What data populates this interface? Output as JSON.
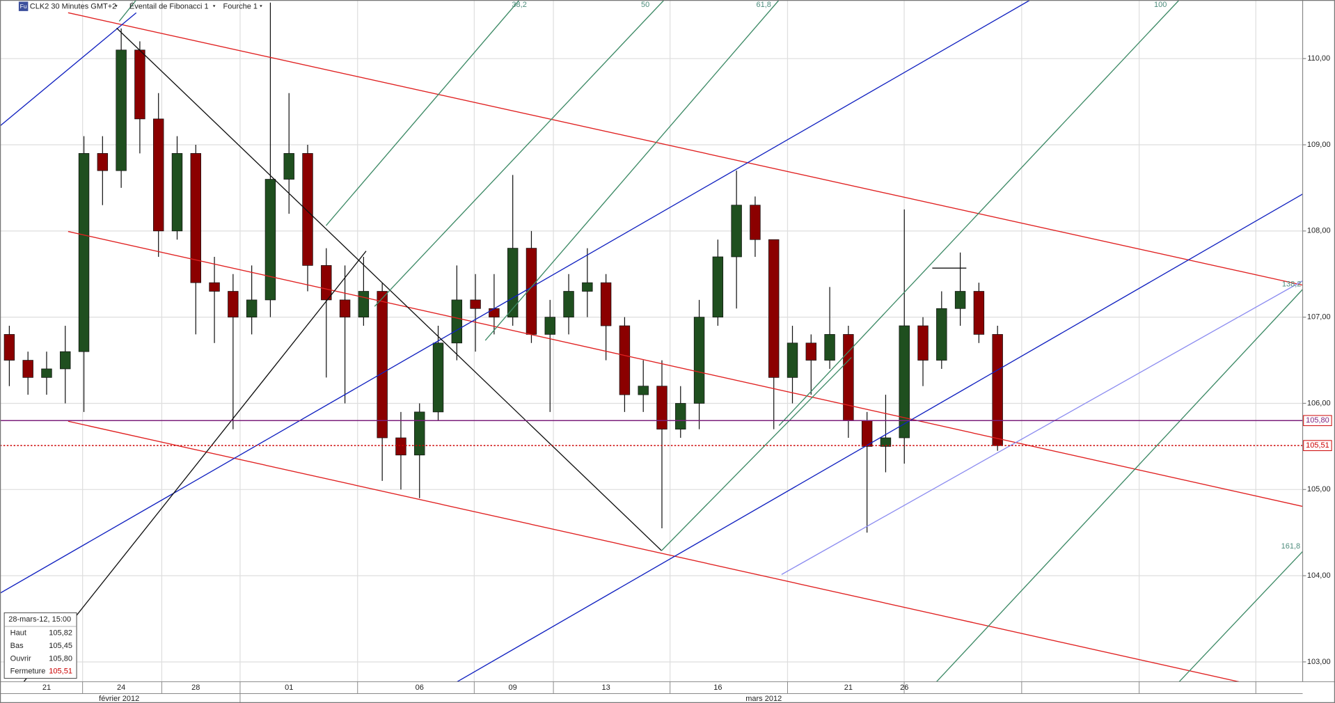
{
  "toolbar": {
    "icon": "Fu",
    "instrument": "CLK2 30 Minutes GMT+2",
    "tools": [
      "Éventail de Fibonacci 1",
      "Fourche 1"
    ]
  },
  "chart_data": {
    "type": "candlestick",
    "categories": [
      null,
      null,
      "21",
      null,
      null,
      null,
      "24",
      null,
      null,
      null,
      "28",
      null,
      null,
      null,
      null,
      "01",
      null,
      null,
      null,
      null,
      null,
      null,
      "06",
      null,
      null,
      null,
      null,
      "09",
      null,
      null,
      null,
      null,
      "13",
      null,
      null,
      null,
      null,
      null,
      "16",
      null,
      null,
      null,
      null,
      null,
      null,
      "21",
      null,
      null,
      "26",
      null,
      null,
      null,
      null,
      null
    ],
    "open": [
      106.8,
      106.5,
      106.3,
      106.4,
      106.6,
      108.9,
      108.7,
      110.1,
      109.3,
      108.0,
      108.9,
      107.4,
      107.3,
      107.0,
      107.2,
      108.6,
      108.9,
      107.6,
      107.2,
      107.0,
      107.3,
      105.6,
      105.4,
      105.9,
      106.7,
      107.2,
      107.1,
      107.0,
      107.8,
      106.8,
      107.0,
      107.3,
      107.4,
      106.9,
      106.1,
      106.2,
      105.7,
      106.0,
      107.0,
      107.7,
      108.3,
      107.9,
      106.3,
      106.7,
      106.5,
      106.8,
      105.8,
      105.5,
      105.6,
      106.9,
      106.5,
      107.1,
      107.3,
      106.8
    ],
    "high": [
      106.9,
      106.6,
      106.6,
      106.9,
      109.1,
      109.1,
      110.35,
      110.2,
      109.6,
      109.1,
      109.0,
      107.7,
      107.5,
      107.6,
      110.65,
      109.6,
      109.0,
      107.8,
      107.6,
      107.7,
      107.4,
      105.9,
      106.0,
      106.9,
      107.6,
      107.5,
      107.5,
      108.65,
      108.0,
      107.2,
      107.5,
      107.8,
      107.5,
      107.0,
      106.5,
      106.5,
      106.2,
      107.2,
      107.9,
      108.7,
      108.4,
      107.9,
      106.9,
      106.8,
      107.35,
      106.9,
      105.9,
      106.1,
      108.25,
      107.0,
      107.3,
      107.75,
      107.4,
      106.9
    ],
    "low": [
      106.2,
      106.1,
      106.1,
      106.0,
      105.9,
      108.3,
      108.5,
      108.9,
      107.7,
      107.9,
      106.8,
      106.7,
      105.7,
      106.8,
      107.0,
      108.2,
      107.3,
      106.3,
      106.0,
      106.9,
      105.1,
      105.0,
      104.9,
      105.8,
      106.5,
      106.6,
      106.8,
      106.9,
      106.7,
      105.9,
      106.8,
      107.0,
      106.5,
      105.9,
      105.9,
      104.55,
      105.6,
      105.7,
      106.9,
      107.1,
      107.7,
      105.7,
      106.0,
      106.1,
      106.4,
      105.6,
      104.5,
      105.2,
      105.3,
      106.2,
      106.4,
      106.9,
      106.7,
      105.45
    ],
    "close": [
      106.5,
      106.3,
      106.4,
      106.6,
      108.9,
      108.7,
      110.1,
      109.3,
      108.0,
      108.9,
      107.4,
      107.3,
      107.0,
      107.2,
      108.6,
      108.9,
      107.6,
      107.2,
      107.0,
      107.3,
      105.6,
      105.4,
      105.9,
      106.7,
      107.2,
      107.1,
      107.0,
      107.8,
      106.8,
      107.0,
      107.3,
      107.4,
      106.9,
      106.1,
      106.2,
      105.7,
      106.0,
      107.0,
      107.7,
      108.3,
      107.9,
      106.3,
      106.7,
      106.5,
      106.8,
      105.8,
      105.5,
      105.6,
      106.9,
      106.5,
      107.1,
      107.3,
      106.8,
      105.51
    ],
    "up_color": "#1f4f1f",
    "down_color": "#8b0000",
    "ylim": [
      102.77,
      110.68
    ],
    "yticks": [
      {
        "value": 103,
        "label": "103,00"
      },
      {
        "value": 104,
        "label": "104,00"
      },
      {
        "value": 105,
        "label": "105,00"
      },
      {
        "value": 106,
        "label": "106,00"
      },
      {
        "value": 107,
        "label": "107,00"
      },
      {
        "value": 108,
        "label": "108,00"
      },
      {
        "value": 109,
        "label": "109,00"
      },
      {
        "value": 110,
        "label": "110,00"
      }
    ],
    "grid": true,
    "hlines": [
      {
        "value": 105.8,
        "label": "105,80",
        "color": "#7b1f7b",
        "dashed": false
      },
      {
        "value": 105.51,
        "label": "105,51",
        "color": "#cc0000",
        "dashed": true
      }
    ],
    "fib_labels": [
      "38,2",
      "50",
      "61,8",
      "100",
      "138,2",
      "161,8"
    ],
    "month_labels": [
      "février 2012",
      "mars 2012"
    ]
  },
  "info_box": {
    "title": "28-mars-12, 15:00",
    "rows": [
      [
        "Haut",
        "105,82"
      ],
      [
        "Bas",
        "105,45"
      ],
      [
        "Ouvrir",
        "105,80"
      ],
      [
        "Fermeture",
        "105,51"
      ]
    ]
  }
}
